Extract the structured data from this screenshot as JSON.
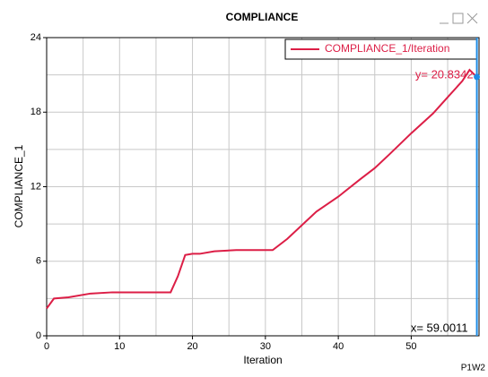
{
  "chart_data": {
    "type": "line",
    "title": "COMPLIANCE",
    "xlabel": "Iteration",
    "ylabel": "COMPLIANCE_1",
    "corner_text": "P1W2",
    "x": [
      0,
      1,
      3,
      6,
      9,
      12,
      17,
      18,
      19,
      20,
      21,
      23,
      26,
      29,
      31,
      33,
      35,
      37,
      40,
      43,
      45,
      47,
      50,
      53,
      55,
      57,
      58,
      59.0011
    ],
    "series": [
      {
        "name": "COMPLIANCE_1/Iteration",
        "color": "#dc1e46",
        "values": [
          2.2,
          3.0,
          3.1,
          3.4,
          3.5,
          3.5,
          3.5,
          4.8,
          6.5,
          6.6,
          6.6,
          6.8,
          6.9,
          6.9,
          6.9,
          7.8,
          8.9,
          10.0,
          11.2,
          12.6,
          13.5,
          14.6,
          16.3,
          17.9,
          19.2,
          20.5,
          21.4,
          20.8342
        ]
      }
    ],
    "xlim": [
      0,
      59.3
    ],
    "xticks": [
      0,
      10,
      20,
      30,
      40,
      50
    ],
    "xminor_ticks": [
      5,
      15,
      25,
      35,
      45,
      55
    ],
    "ylim": [
      0,
      24
    ],
    "yticks": [
      0,
      6,
      12,
      18,
      24
    ],
    "yminor_ticks": [
      3,
      9,
      15,
      21
    ],
    "grid": true,
    "legend": "upper right",
    "cursor": {
      "x": 59.0011,
      "y": 20.8342,
      "x_label": "x= 59.0011",
      "y_label": "y= 20.8342",
      "color": "#1e8ce6"
    }
  }
}
